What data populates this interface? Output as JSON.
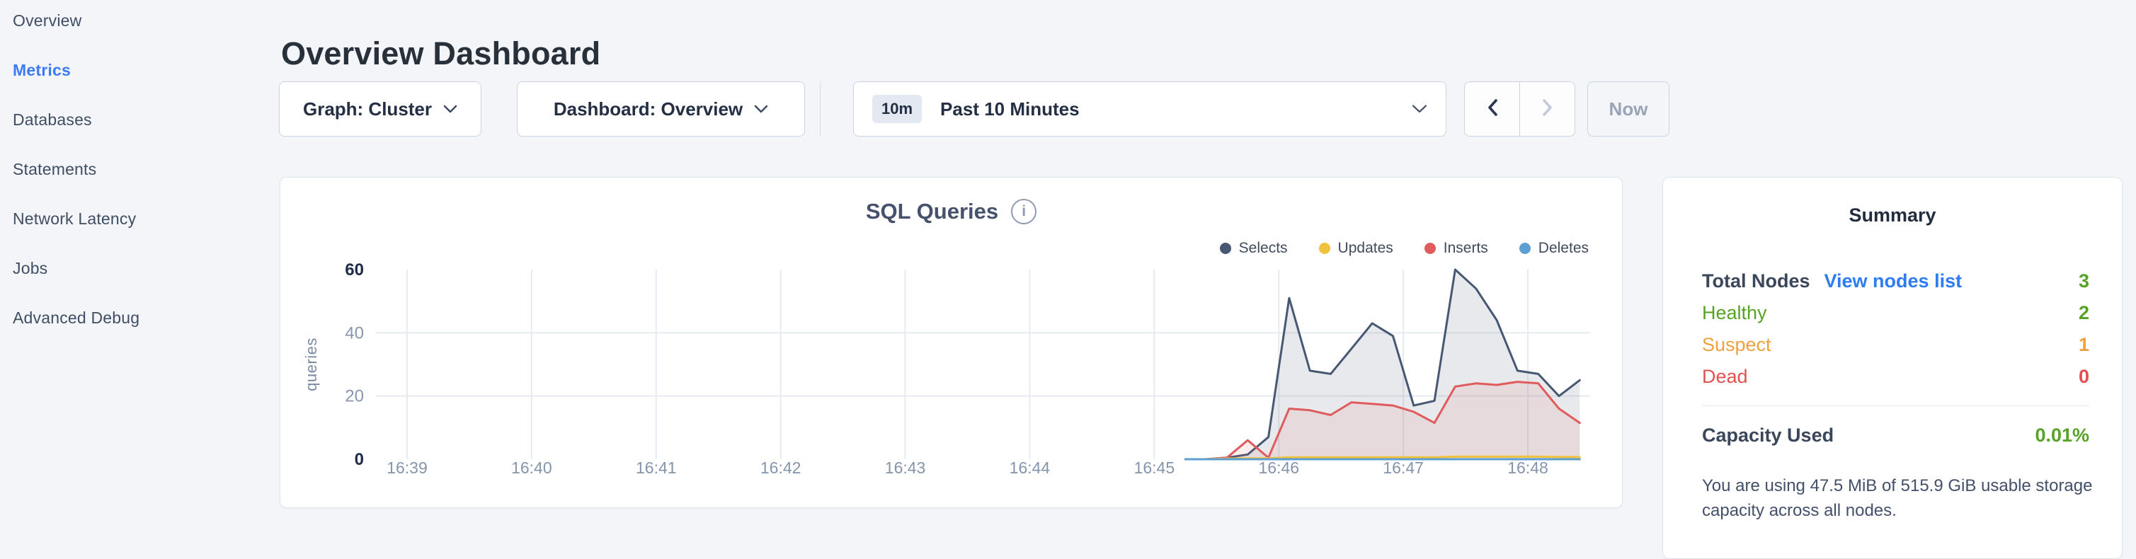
{
  "header": {
    "title": "Overview Dashboard"
  },
  "sidebar": {
    "items": [
      {
        "label": "Overview",
        "active": false
      },
      {
        "label": "Metrics",
        "active": true
      },
      {
        "label": "Databases",
        "active": false
      },
      {
        "label": "Statements",
        "active": false
      },
      {
        "label": "Network Latency",
        "active": false
      },
      {
        "label": "Jobs",
        "active": false
      },
      {
        "label": "Advanced Debug",
        "active": false
      }
    ]
  },
  "toolbar": {
    "graph_dropdown": "Graph: Cluster",
    "dashboard_dropdown": "Dashboard: Overview",
    "time_badge": "10m",
    "time_label": "Past 10 Minutes",
    "now_label": "Now"
  },
  "colors": {
    "accent_blue": "#3d7bf5",
    "link_blue": "#2e7cf2",
    "green": "#56a325",
    "orange": "#eda23d",
    "red": "#e2504f"
  },
  "summary": {
    "title": "Summary",
    "rows": [
      {
        "label": "Total Nodes",
        "link": "View nodes list",
        "value": "3",
        "color": "#56a325"
      },
      {
        "label": "Healthy",
        "value": "2",
        "color": "#56a325"
      },
      {
        "label": "Suspect",
        "value": "1",
        "color": "#eda23d"
      },
      {
        "label": "Dead",
        "value": "0",
        "color": "#e2504f"
      }
    ],
    "capacity_label": "Capacity Used",
    "capacity_value": "0.01%",
    "capacity_description": "You are using 47.5 MiB of 515.9 GiB usable storage capacity across all nodes."
  },
  "chart_data": {
    "type": "area",
    "title": "SQL Queries",
    "ylabel": "queries",
    "ylim": [
      0,
      60
    ],
    "yticks": [
      0,
      20,
      40,
      60
    ],
    "grid": true,
    "legend_position": "top-right",
    "x_ticks": [
      "16:39",
      "16:40",
      "16:41",
      "16:42",
      "16:43",
      "16:44",
      "16:45",
      "16:46",
      "16:47",
      "16:48"
    ],
    "x_start": "16:38:45",
    "x_end": "16:48:30",
    "sample_interval_seconds": 10,
    "series": [
      {
        "name": "Selects",
        "color": "#475872",
        "fill": "rgba(71,88,114,0.13)",
        "start": "16:45:15",
        "values": [
          0,
          0,
          0.5,
          1.5,
          7,
          51,
          28,
          27,
          35,
          43,
          39,
          17,
          18.5,
          60,
          54,
          44,
          28,
          27,
          20,
          25
        ]
      },
      {
        "name": "Updates",
        "color": "#f0c13c",
        "fill": "none",
        "start": "16:45:15",
        "values": [
          0,
          0,
          0.2,
          0.3,
          0.3,
          0.6,
          0.6,
          0.6,
          0.6,
          0.6,
          0.6,
          0.6,
          0.6,
          0.8,
          0.8,
          0.8,
          0.8,
          0.8,
          0.7,
          0.7
        ]
      },
      {
        "name": "Inserts",
        "color": "#e05c5c",
        "fill": "rgba(224,92,92,0.10)",
        "start": "16:45:15",
        "values": [
          0,
          0,
          0.5,
          6,
          0.5,
          16,
          15.5,
          14,
          18,
          17.5,
          17,
          15,
          11.5,
          23,
          24,
          23.5,
          24.5,
          24,
          16,
          11.5
        ]
      },
      {
        "name": "Deletes",
        "color": "#5c9fd3",
        "fill": "none",
        "start": "16:45:15",
        "values": [
          0,
          0,
          0,
          0,
          0,
          0,
          0,
          0,
          0,
          0,
          0,
          0,
          0,
          0,
          0,
          0,
          0,
          0,
          0,
          0
        ]
      }
    ]
  }
}
